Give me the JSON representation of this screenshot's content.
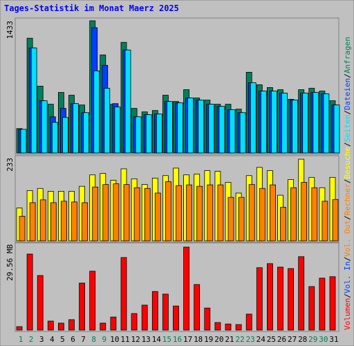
{
  "chart_data": [
    {
      "type": "bar",
      "title": "Tages-Statistik im Monat Maerz 2025",
      "ylim": [
        0,
        1433
      ],
      "yticks": [
        1433
      ],
      "series": [
        {
          "name": "Anfragen",
          "color": "#00805c",
          "values": [
            264,
            1244,
            724,
            528,
            656,
            626,
            520,
            1433,
            1063,
            528,
            1199,
            483,
            445,
            460,
            626,
            558,
            686,
            596,
            573,
            528,
            528,
            475,
            875,
            739,
            709,
            686,
            581,
            686,
            701,
            671,
            566
          ]
        },
        {
          "name": "Dateien",
          "color": "#0040ff",
          "values": [
            256,
            1139,
            566,
            392,
            483,
            535,
            437,
            1358,
            950,
            535,
            1116,
            392,
            415,
            422,
            558,
            543,
            596,
            573,
            528,
            505,
            468,
            437,
            762,
            671,
            671,
            649,
            573,
            649,
            656,
            641,
            520
          ]
        },
        {
          "name": "Seiten",
          "color": "#00e0ff",
          "values": [
            256,
            1139,
            566,
            332,
            385,
            535,
            437,
            890,
            701,
            498,
            1116,
            392,
            415,
            422,
            558,
            543,
            596,
            573,
            528,
            505,
            468,
            437,
            762,
            671,
            671,
            649,
            573,
            649,
            656,
            641,
            520
          ]
        }
      ]
    },
    {
      "type": "bar",
      "ylim": [
        0,
        233
      ],
      "yticks": [
        233
      ],
      "series": [
        {
          "name": "Besuche",
          "color": "#ffff00",
          "values": [
            92,
            141,
            147,
            139,
            139,
            139,
            153,
            185,
            189,
            170,
            202,
            174,
            158,
            176,
            183,
            204,
            185,
            187,
            197,
            195,
            164,
            134,
            183,
            206,
            197,
            128,
            172,
            229,
            178,
            149,
            178
          ]
        },
        {
          "name": "Rechner",
          "color": "#ff8000",
          "values": [
            69,
            107,
            115,
            107,
            111,
            109,
            107,
            151,
            158,
            160,
            158,
            149,
            147,
            134,
            166,
            155,
            157,
            153,
            157,
            157,
            122,
            122,
            158,
            147,
            157,
            94,
            149,
            164,
            149,
            111,
            116
          ]
        }
      ]
    },
    {
      "type": "bar",
      "ylim": [
        0,
        29.56
      ],
      "yticks": [
        {
          "value": 29.56,
          "label": "29.56 MB"
        }
      ],
      "series": [
        {
          "name": "Volumen",
          "color": "#ff0000",
          "values": [
            1.19,
            26.2,
            18.8,
            3.1,
            2.4,
            3.6,
            16.2,
            20.3,
            2.4,
            4.5,
            25.0,
            5.7,
            8.6,
            13.3,
            12.4,
            8.3,
            28.6,
            15.7,
            7.6,
            2.6,
            2.1,
            1.9,
            5.5,
            21.5,
            22.9,
            21.7,
            21.2,
            25.3,
            15.0,
            17.9,
            18.4
          ]
        }
      ],
      "extra_legend": [
        {
          "name": "Vol. In",
          "color": "#0040ff"
        },
        {
          "name": "Vol. Out",
          "color": "#ff8000"
        }
      ],
      "legend_separator": "/",
      "categories": [
        "1",
        "2",
        "3",
        "4",
        "5",
        "6",
        "7",
        "8",
        "9",
        "10",
        "11",
        "12",
        "13",
        "14",
        "15",
        "16",
        "17",
        "18",
        "19",
        "20",
        "21",
        "22",
        "23",
        "24",
        "25",
        "26",
        "27",
        "28",
        "29",
        "30",
        "31"
      ],
      "category_colors": [
        "#00805c",
        "#00805c",
        "#000000",
        "#000000",
        "#000000",
        "#000000",
        "#000000",
        "#00805c",
        "#00805c",
        "#000000",
        "#000000",
        "#000000",
        "#000000",
        "#000000",
        "#00805c",
        "#00805c",
        "#000000",
        "#000000",
        "#000000",
        "#000000",
        "#000000",
        "#00805c",
        "#00805c",
        "#000000",
        "#000000",
        "#000000",
        "#000000",
        "#000000",
        "#00805c",
        "#00805c",
        "#000000"
      ]
    }
  ]
}
